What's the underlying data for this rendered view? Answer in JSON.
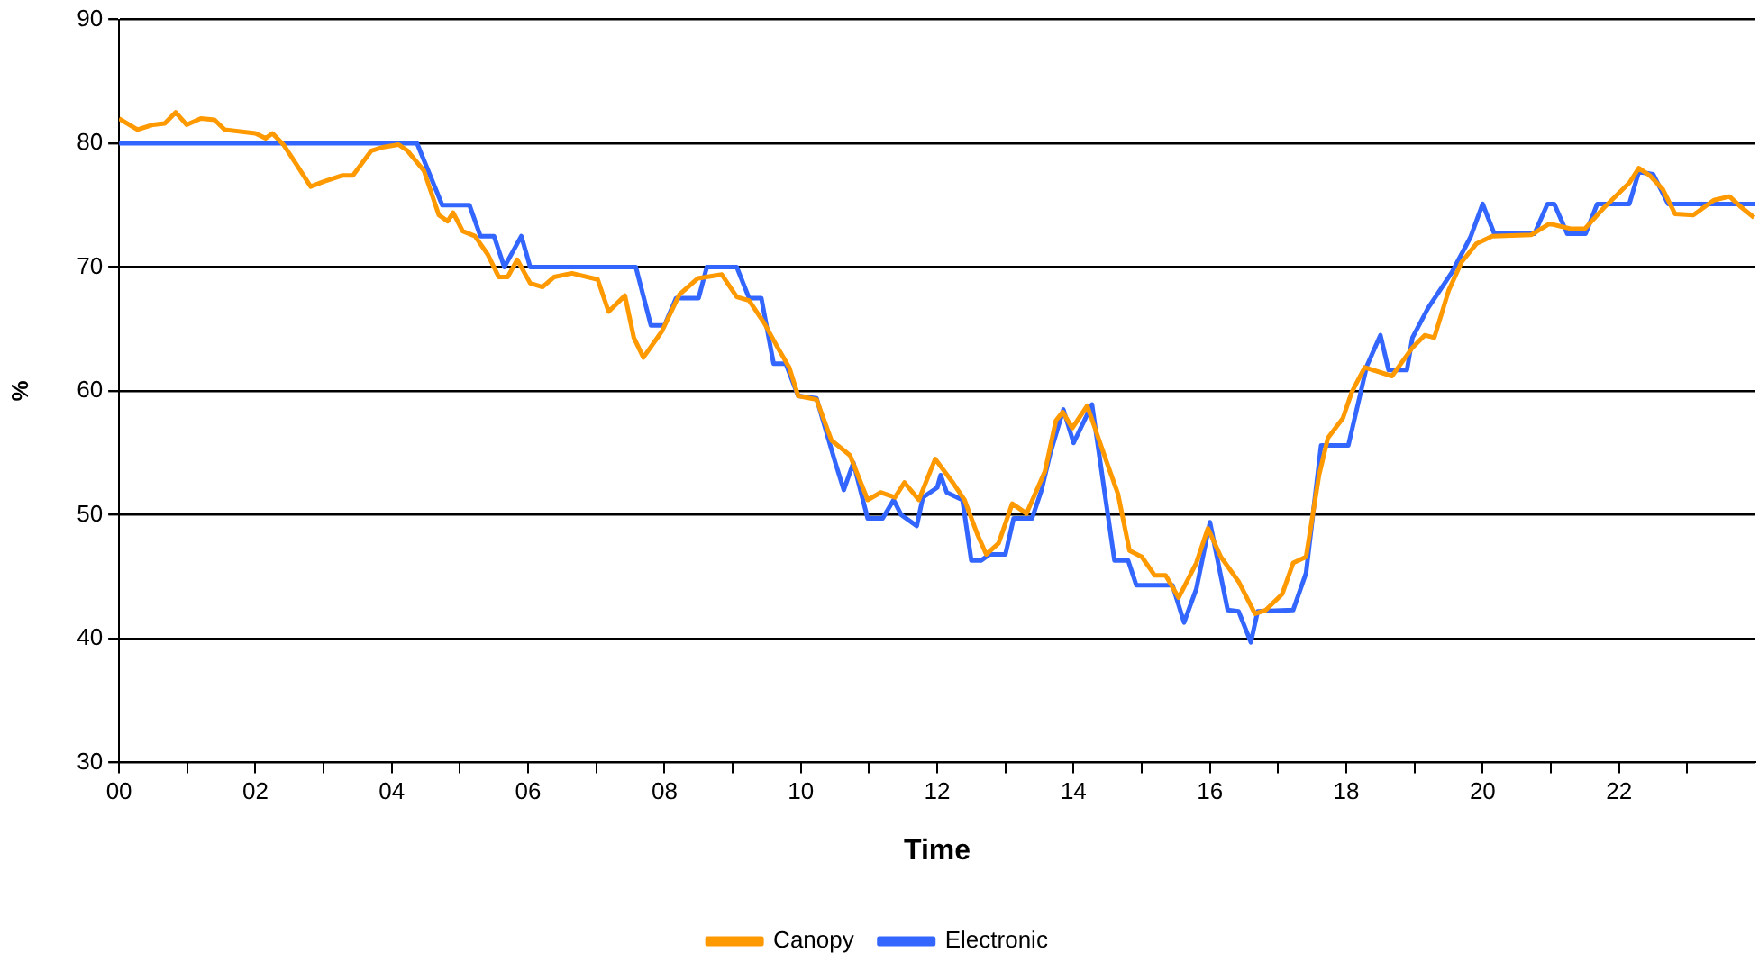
{
  "chart_data": {
    "type": "line",
    "xlabel": "Time",
    "ylabel": "%",
    "xlim": [
      0,
      24
    ],
    "ylim": [
      30,
      90
    ],
    "yticks": [
      30,
      40,
      50,
      60,
      70,
      80,
      90
    ],
    "xticks": [
      {
        "value": 0,
        "label": "00"
      },
      {
        "value": 1,
        "label": null
      },
      {
        "value": 2,
        "label": "02"
      },
      {
        "value": 3,
        "label": null
      },
      {
        "value": 4,
        "label": "04"
      },
      {
        "value": 5,
        "label": null
      },
      {
        "value": 6,
        "label": "06"
      },
      {
        "value": 7,
        "label": null
      },
      {
        "value": 8,
        "label": "08"
      },
      {
        "value": 9,
        "label": null
      },
      {
        "value": 10,
        "label": "10"
      },
      {
        "value": 11,
        "label": null
      },
      {
        "value": 12,
        "label": "12"
      },
      {
        "value": 13,
        "label": null
      },
      {
        "value": 14,
        "label": "14"
      },
      {
        "value": 15,
        "label": null
      },
      {
        "value": 16,
        "label": "16"
      },
      {
        "value": 17,
        "label": null
      },
      {
        "value": 18,
        "label": "18"
      },
      {
        "value": 19,
        "label": null
      },
      {
        "value": 20,
        "label": "20"
      },
      {
        "value": 21,
        "label": null
      },
      {
        "value": 22,
        "label": "22"
      },
      {
        "value": 23,
        "label": null
      }
    ],
    "grid": "y",
    "legend": "bottom",
    "marker": "none",
    "line_style": "solid",
    "series": [
      {
        "name": "Canopy",
        "color": "#ff9900",
        "x": [
          0,
          0.27,
          0.5,
          0.67,
          0.83,
          0.99,
          1.2,
          1.4,
          1.55,
          2,
          2.15,
          2.25,
          2.41,
          2.6,
          2.81,
          3,
          3.27,
          3.43,
          3.7,
          3.88,
          4.1,
          4.23,
          4.47,
          4.69,
          4.82,
          4.9,
          5.04,
          5.22,
          5.41,
          5.57,
          5.7,
          5.84,
          6.03,
          6.21,
          6.38,
          6.64,
          7.02,
          7.18,
          7.42,
          7.55,
          7.69,
          7.96,
          8.22,
          8.49,
          8.84,
          9.06,
          9.24,
          9.46,
          9.64,
          9.83,
          9.96,
          10.23,
          10.45,
          10.72,
          10.98,
          11.17,
          11.38,
          11.52,
          11.73,
          11.97,
          12.24,
          12.4,
          12.59,
          12.72,
          12.9,
          13.1,
          13.31,
          13.58,
          13.74,
          13.84,
          13.98,
          14.2,
          14.47,
          14.65,
          14.82,
          15,
          15.19,
          15.35,
          15.54,
          15.8,
          15.97,
          16.16,
          16.42,
          16.66,
          16.82,
          17.06,
          17.22,
          17.41,
          17.6,
          17.73,
          17.95,
          18.08,
          18.27,
          18.67,
          18.97,
          19.15,
          19.29,
          19.5,
          19.69,
          19.91,
          20.14,
          20.71,
          20.98,
          21.29,
          21.5,
          21.78,
          22.15,
          22.29,
          22.45,
          22.64,
          22.82,
          23.09,
          23.39,
          23.62,
          23.8,
          23.98
        ],
        "values": [
          82,
          81.1,
          81.5,
          81.6,
          82.5,
          81.5,
          82,
          81.9,
          81.1,
          80.8,
          80.4,
          80.8,
          79.9,
          78.3,
          76.5,
          76.9,
          77.4,
          77.4,
          79.4,
          79.7,
          79.9,
          79.4,
          77.8,
          74.2,
          73.7,
          74.4,
          72.9,
          72.5,
          71,
          69.2,
          69.2,
          70.6,
          68.7,
          68.4,
          69.2,
          69.5,
          69,
          66.4,
          67.7,
          64.3,
          62.7,
          64.8,
          67.8,
          69.1,
          69.4,
          67.6,
          67.3,
          65.5,
          63.7,
          61.9,
          59.6,
          59.3,
          56,
          54.8,
          51.2,
          51.8,
          51.4,
          52.6,
          51.2,
          54.5,
          52.5,
          51.2,
          48.4,
          46.8,
          47.7,
          50.9,
          50.1,
          53.5,
          57.6,
          58.3,
          57,
          58.8,
          54.5,
          51.7,
          47.1,
          46.6,
          45.1,
          45.1,
          43.3,
          46.1,
          48.9,
          46.6,
          44.6,
          42,
          42.3,
          43.6,
          46.1,
          46.6,
          53.2,
          56.2,
          57.8,
          59.9,
          61.9,
          61.2,
          63.5,
          64.5,
          64.3,
          68.1,
          70.4,
          71.9,
          72.5,
          72.6,
          73.5,
          73.1,
          73.1,
          74.8,
          76.8,
          78,
          77.4,
          76.3,
          74.3,
          74.2,
          75.4,
          75.7,
          74.8,
          74
        ]
      },
      {
        "name": "Electronic",
        "color": "#3366ff",
        "x": [
          0,
          4.37,
          4.74,
          5.14,
          5.3,
          5.5,
          5.65,
          5.9,
          6.03,
          7.58,
          7.8,
          8,
          8.17,
          8.5,
          8.62,
          9.06,
          9.24,
          9.42,
          9.6,
          9.78,
          9.96,
          10.23,
          10.5,
          10.63,
          10.77,
          10.98,
          11.2,
          11.36,
          11.47,
          11.7,
          11.79,
          12,
          12.05,
          12.14,
          12.37,
          12.5,
          12.64,
          12.77,
          13,
          13.12,
          13.39,
          13.53,
          13.66,
          13.85,
          14,
          14.27,
          14.45,
          14.6,
          14.8,
          14.92,
          15.45,
          15.62,
          15.8,
          16,
          16.26,
          16.42,
          16.6,
          16.7,
          17.22,
          17.41,
          17.63,
          18.03,
          18.3,
          18.5,
          18.62,
          18.89,
          18.97,
          19.2,
          19.55,
          19.82,
          20,
          20.17,
          20.76,
          20.95,
          21.05,
          21.24,
          21.51,
          21.68,
          22.15,
          22.29,
          22.5,
          22.72,
          24
        ],
        "values": [
          80,
          80,
          75,
          75,
          72.5,
          72.5,
          70,
          72.5,
          70,
          70,
          65.3,
          65.3,
          67.5,
          67.5,
          70,
          70,
          67.5,
          67.5,
          62.2,
          62.2,
          59.6,
          59.4,
          54.3,
          52,
          54.2,
          49.7,
          49.7,
          51.2,
          50,
          49.1,
          51.4,
          52.2,
          53.2,
          51.8,
          51.2,
          46.3,
          46.3,
          46.8,
          46.8,
          49.7,
          49.7,
          52,
          55,
          58.5,
          55.8,
          58.9,
          52,
          46.3,
          46.3,
          44.3,
          44.3,
          41.3,
          44,
          49.4,
          42.3,
          42.2,
          39.7,
          42.2,
          42.3,
          45.3,
          55.6,
          55.6,
          62,
          64.5,
          61.7,
          61.7,
          64.3,
          66.7,
          69.6,
          72.4,
          75.1,
          72.7,
          72.7,
          75.1,
          75.1,
          72.7,
          72.7,
          75.1,
          75.1,
          77.7,
          77.5,
          75.1,
          75.1
        ]
      }
    ]
  }
}
